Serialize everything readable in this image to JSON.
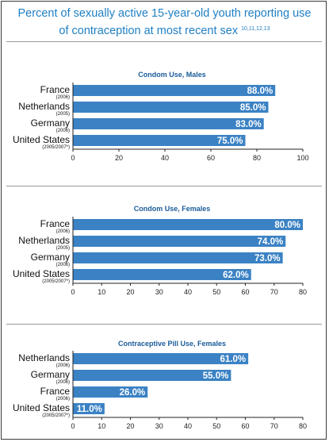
{
  "title_line1": "Percent of sexually active 15-year-old youth reporting use",
  "title_line2": "of contraception at most recent sex",
  "title_refs": "10,11,12,13",
  "colors": {
    "title": "#1f7fc4",
    "bar": "#3b82c4",
    "panel_title": "#1a5b99"
  },
  "chart_data": [
    {
      "type": "bar",
      "orientation": "horizontal",
      "title": "Condom Use, Males",
      "categories": [
        {
          "name": "France",
          "year": "(2006)"
        },
        {
          "name": "Netherlands",
          "year": "(2005)"
        },
        {
          "name": "Germany",
          "year": "(2006)"
        },
        {
          "name": "United States",
          "year": "(2005/2007*)"
        }
      ],
      "values": [
        88.0,
        85.0,
        83.0,
        75.0
      ],
      "value_labels": [
        "88.0%",
        "85.0%",
        "83.0%",
        "75.0%"
      ],
      "xlim": [
        0,
        100
      ],
      "xticks": [
        0,
        20,
        40,
        60,
        80,
        100
      ],
      "grid": false,
      "legend": "none"
    },
    {
      "type": "bar",
      "orientation": "horizontal",
      "title": "Condom Use, Females",
      "categories": [
        {
          "name": "France",
          "year": "(2006)"
        },
        {
          "name": "Netherlands",
          "year": "(2005)"
        },
        {
          "name": "Germany",
          "year": "(2006)"
        },
        {
          "name": "United States",
          "year": "(2005/2007*)"
        }
      ],
      "values": [
        80.0,
        74.0,
        73.0,
        62.0
      ],
      "value_labels": [
        "80.0%",
        "74.0%",
        "73.0%",
        "62.0%"
      ],
      "xlim": [
        0,
        80
      ],
      "xticks": [
        0,
        10,
        20,
        30,
        40,
        50,
        60,
        70,
        80
      ],
      "grid": false,
      "legend": "none"
    },
    {
      "type": "bar",
      "orientation": "horizontal",
      "title": "Contraceptive Pill Use, Females",
      "categories": [
        {
          "name": "Netherlands",
          "year": "(2006)"
        },
        {
          "name": "Germany",
          "year": "(2006)"
        },
        {
          "name": "France",
          "year": "(2006)"
        },
        {
          "name": "United States",
          "year": "(2005/2007*)"
        }
      ],
      "values": [
        61.0,
        55.0,
        26.0,
        11.0
      ],
      "value_labels": [
        "61.0%",
        "55.0%",
        "26.0%",
        "11.0%"
      ],
      "xlim": [
        0,
        80
      ],
      "xticks": [
        0,
        10,
        20,
        30,
        40,
        50,
        60,
        70,
        80
      ],
      "grid": false,
      "legend": "none"
    }
  ]
}
